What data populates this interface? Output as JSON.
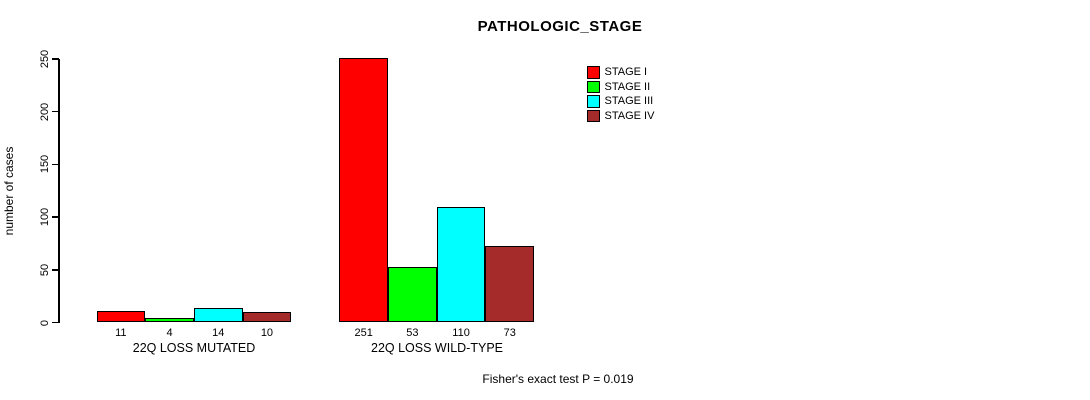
{
  "chart_data": {
    "type": "bar",
    "title": "PATHOLOGIC_STAGE",
    "ylabel": "number of cases",
    "xlabel": "",
    "ylim": [
      0,
      250
    ],
    "yticks": [
      0,
      50,
      100,
      150,
      200,
      250
    ],
    "categories": [
      "22Q LOSS MUTATED",
      "22Q LOSS WILD-TYPE"
    ],
    "series": [
      {
        "name": "STAGE I",
        "color": "#ff0000",
        "values": [
          11,
          251
        ]
      },
      {
        "name": "STAGE II",
        "color": "#00ff00",
        "values": [
          4,
          53
        ]
      },
      {
        "name": "STAGE III",
        "color": "#00ffff",
        "values": [
          14,
          110
        ]
      },
      {
        "name": "STAGE IV",
        "color": "#a52a2a",
        "values": [
          10,
          73
        ]
      }
    ],
    "groups": [
      {
        "label": "22Q LOSS MUTATED",
        "values": [
          11,
          4,
          14,
          10
        ]
      },
      {
        "label": "22Q LOSS WILD-TYPE",
        "values": [
          251,
          53,
          110,
          73
        ]
      }
    ],
    "bar_value_labels_shown": true,
    "legend_position": "top-right",
    "grid": false,
    "footer": "Fisher's exact test P = 0.019"
  }
}
